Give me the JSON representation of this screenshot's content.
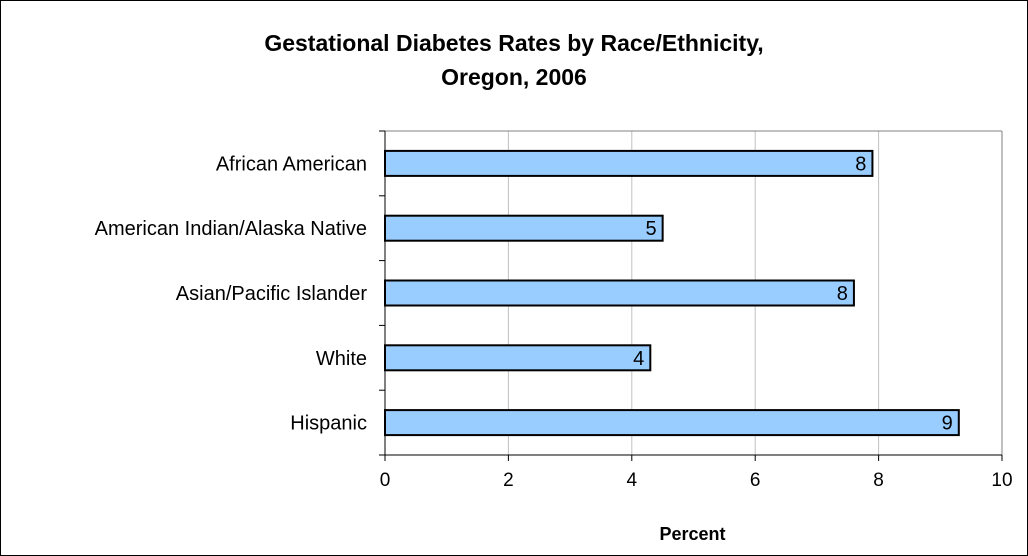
{
  "chart_data": {
    "type": "bar",
    "orientation": "horizontal",
    "title_lines": [
      "Gestational Diabetes Rates by Race/Ethnicity,",
      "Oregon, 2006"
    ],
    "xlabel": "Percent",
    "ylabel": "",
    "categories": [
      "African American",
      "American Indian/Alaska Native",
      "Asian/Pacific Islander",
      "White",
      "Hispanic"
    ],
    "values": [
      7.9,
      4.5,
      7.6,
      4.3,
      9.3
    ],
    "value_labels": [
      "8",
      "5",
      "8",
      "4",
      "9"
    ],
    "xlim": [
      0,
      10
    ],
    "xticks": [
      0,
      2,
      4,
      6,
      8,
      10
    ],
    "xtick_labels": [
      "0",
      "2",
      "4",
      "6",
      "8",
      "10"
    ],
    "grid": true,
    "legend": "none",
    "colors": {
      "bar_fill": "#99ccff",
      "bar_stroke": "#000000",
      "plot_border": "#808080",
      "gridline": "#c0c0c0"
    }
  }
}
